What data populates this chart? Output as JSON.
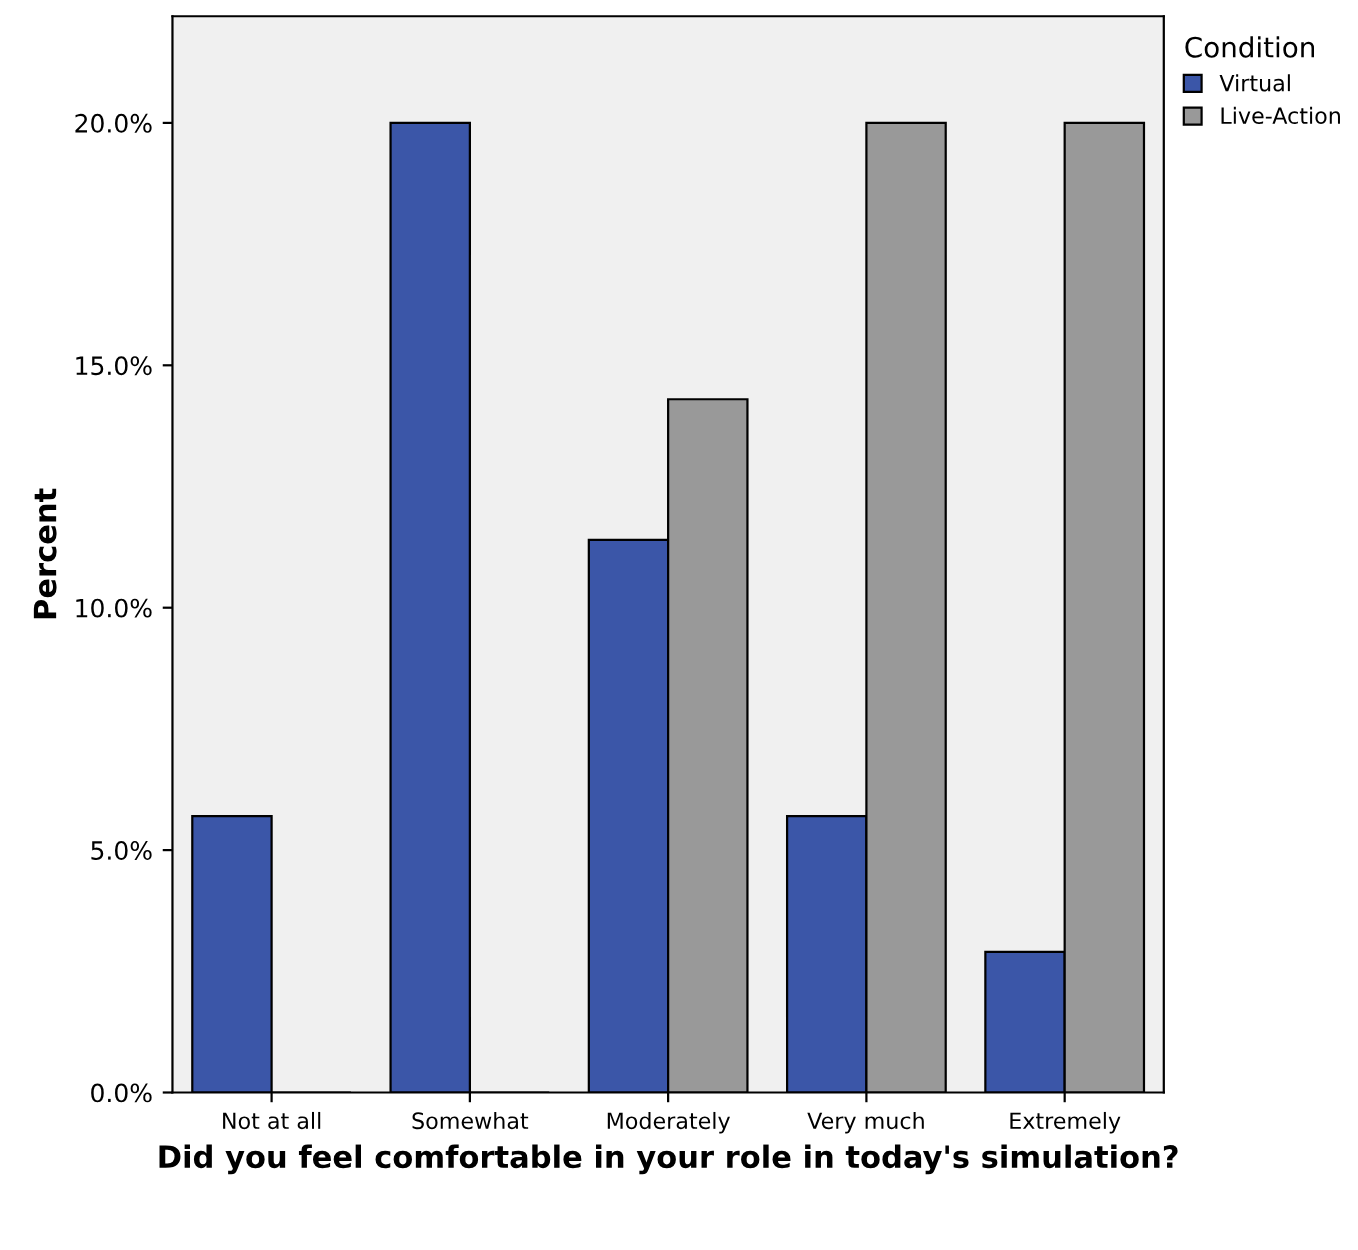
{
  "chart_data": {
    "type": "bar",
    "xlabel": "Did you feel comfortable in your role in today's simulation?",
    "ylabel": "Percent",
    "legend_title": "Condition",
    "categories": [
      "Not at all",
      "Somewhat",
      "Moderately",
      "Very much",
      "Extremely"
    ],
    "series": [
      {
        "name": "Virtual",
        "color": "#3b56a8",
        "values": [
          5.7,
          20.0,
          11.4,
          5.7,
          2.9
        ]
      },
      {
        "name": "Live-Action",
        "color": "#999999",
        "values": [
          0,
          0,
          14.3,
          20.0,
          20.0
        ]
      }
    ],
    "ylim": [
      0,
      22.2
    ],
    "yticks": [
      {
        "value": 0,
        "label": "0.0%"
      },
      {
        "value": 5,
        "label": "5.0%"
      },
      {
        "value": 10,
        "label": "10.0%"
      },
      {
        "value": 15,
        "label": "15.0%"
      },
      {
        "value": 20,
        "label": "20.0%"
      }
    ],
    "grid": false,
    "legend": "top right"
  }
}
